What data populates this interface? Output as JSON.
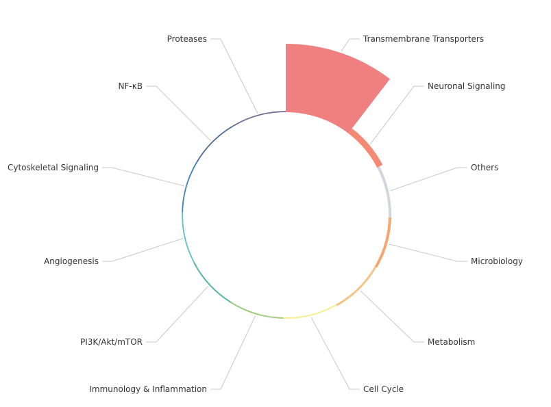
{
  "chart_data": {
    "type": "pie",
    "variant": "nightingale-rose",
    "title": "",
    "legend": "none",
    "slices": [
      {
        "name": "Transmembrane Transporters",
        "value": 100,
        "color": "#f07f7f"
      },
      {
        "name": "Neuronal Signaling",
        "value": 9,
        "color": "#f58a74"
      },
      {
        "name": "Others",
        "value": 4,
        "color": "#d3d6dd"
      },
      {
        "name": "Microbiology",
        "value": 4,
        "color": "#f7a66f"
      },
      {
        "name": "Metabolism",
        "value": 3,
        "color": "#f7c286"
      },
      {
        "name": "Cell Cycle",
        "value": 2,
        "color": "#f9ed8f"
      },
      {
        "name": "Immunology & Inflammation",
        "value": 2,
        "color": "#9ccc7e"
      },
      {
        "name": "PI3K/Akt/mTOR",
        "value": 2,
        "color": "#5cb69b"
      },
      {
        "name": "Angiogenesis",
        "value": 1,
        "color": "#5cc2c8"
      },
      {
        "name": "Cytoskeletal Signaling",
        "value": 1,
        "color": "#3f84b0"
      },
      {
        "name": "NF-κB",
        "value": 1,
        "color": "#4a6a98"
      },
      {
        "name": "Proteases",
        "value": 1,
        "color": "#6c6e93"
      }
    ]
  }
}
